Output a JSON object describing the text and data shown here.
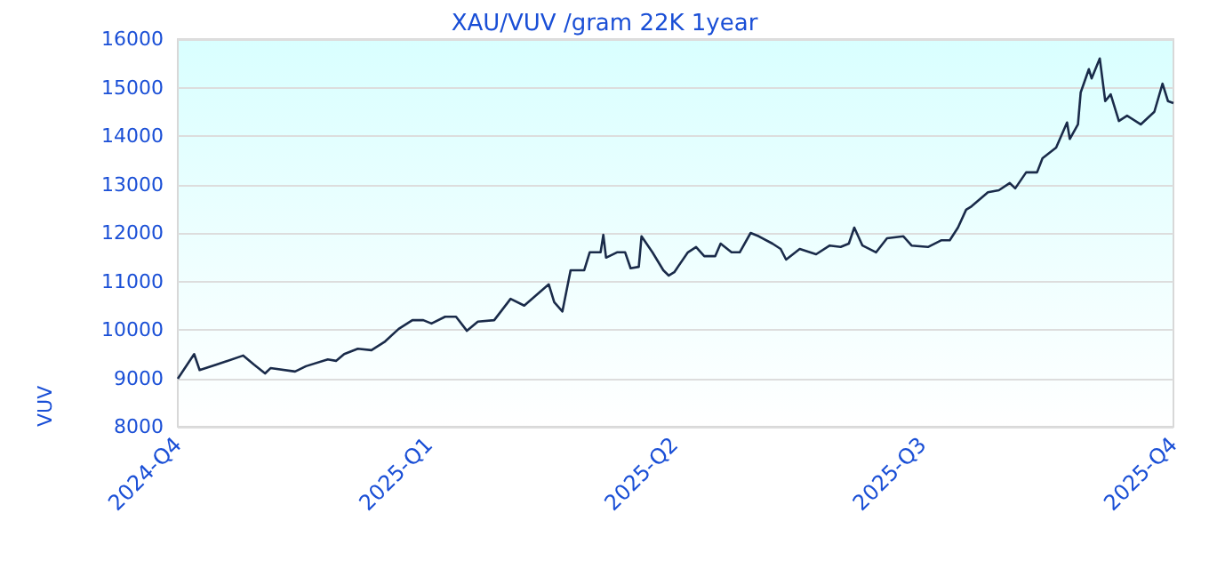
{
  "chart_data": {
    "type": "line",
    "title": "XAU/VUV /gram 22K 1year",
    "ylabel": "VUV",
    "x": [
      "2024-10-01",
      "2024-10-07",
      "2024-10-09",
      "2024-10-15",
      "2024-10-25",
      "2024-10-29",
      "2024-11-02",
      "2024-11-04",
      "2024-11-13",
      "2024-11-17",
      "2024-11-25",
      "2024-11-28",
      "2024-12-01",
      "2024-12-06",
      "2024-12-11",
      "2024-12-16",
      "2024-12-21",
      "2024-12-26",
      "2024-12-30",
      "2025-01-02",
      "2025-01-07",
      "2025-01-11",
      "2025-01-15",
      "2025-01-19",
      "2025-01-25",
      "2025-01-31",
      "2025-02-05",
      "2025-02-14",
      "2025-02-16",
      "2025-02-19",
      "2025-02-22",
      "2025-02-27",
      "2025-03-01",
      "2025-03-05",
      "2025-03-06",
      "2025-03-07",
      "2025-03-11",
      "2025-03-14",
      "2025-03-16",
      "2025-03-19",
      "2025-03-20",
      "2025-03-24",
      "2025-03-28",
      "2025-03-30",
      "2025-04-01",
      "2025-04-06",
      "2025-04-09",
      "2025-04-12",
      "2025-04-16",
      "2025-04-18",
      "2025-04-22",
      "2025-04-25",
      "2025-04-29",
      "2025-05-02",
      "2025-05-07",
      "2025-05-10",
      "2025-05-12",
      "2025-05-17",
      "2025-05-23",
      "2025-05-28",
      "2025-06-01",
      "2025-06-04",
      "2025-06-06",
      "2025-06-09",
      "2025-06-14",
      "2025-06-18",
      "2025-06-24",
      "2025-06-27",
      "2025-07-03",
      "2025-07-08",
      "2025-07-11",
      "2025-07-14",
      "2025-07-17",
      "2025-07-19",
      "2025-07-25",
      "2025-07-29",
      "2025-08-02",
      "2025-08-04",
      "2025-08-08",
      "2025-08-12",
      "2025-08-14",
      "2025-08-19",
      "2025-08-23",
      "2025-08-24",
      "2025-08-27",
      "2025-08-28",
      "2025-08-31",
      "2025-09-01",
      "2025-09-04",
      "2025-09-06",
      "2025-09-08",
      "2025-09-11",
      "2025-09-14",
      "2025-09-19",
      "2025-09-24",
      "2025-09-27",
      "2025-09-29",
      "2025-10-01"
    ],
    "series": [
      {
        "color": "#1a2b4a",
        "values": [
          8990,
          9500,
          9170,
          9280,
          9470,
          9280,
          9100,
          9210,
          9140,
          9250,
          9390,
          9360,
          9500,
          9610,
          9580,
          9760,
          10020,
          10200,
          10200,
          10130,
          10270,
          10270,
          9980,
          10170,
          10200,
          10640,
          10500,
          10940,
          10570,
          10380,
          11230,
          11230,
          11600,
          11600,
          11960,
          11490,
          11600,
          11600,
          11270,
          11300,
          11930,
          11600,
          11230,
          11120,
          11190,
          11600,
          11710,
          11520,
          11520,
          11780,
          11600,
          11600,
          12000,
          11930,
          11780,
          11670,
          11450,
          11670,
          11560,
          11740,
          11710,
          11780,
          12110,
          11740,
          11600,
          11890,
          11930,
          11740,
          11710,
          11850,
          11850,
          12110,
          12480,
          12550,
          12840,
          12880,
          13030,
          12920,
          13250,
          13250,
          13540,
          13760,
          14280,
          13940,
          14240,
          14900,
          15380,
          15190,
          15600,
          14720,
          14860,
          14310,
          14420,
          14240,
          14500,
          15080,
          14720,
          14680
        ]
      }
    ],
    "xlim": [
      "2024-10-01",
      "2025-10-01"
    ],
    "xticks": [
      {
        "value": "2024-10-01",
        "label": "2024-Q4"
      },
      {
        "value": "2025-01-01",
        "label": "2025-Q1"
      },
      {
        "value": "2025-04-01",
        "label": "2025-Q2"
      },
      {
        "value": "2025-07-01",
        "label": "2025-Q3"
      },
      {
        "value": "2025-10-01",
        "label": "2025-Q4"
      }
    ],
    "ylim": [
      8000,
      16000
    ],
    "yticks": [
      8000,
      9000,
      10000,
      11000,
      12000,
      13000,
      14000,
      15000,
      16000
    ],
    "grid": "y",
    "marker": "none",
    "line_style": "solid"
  }
}
